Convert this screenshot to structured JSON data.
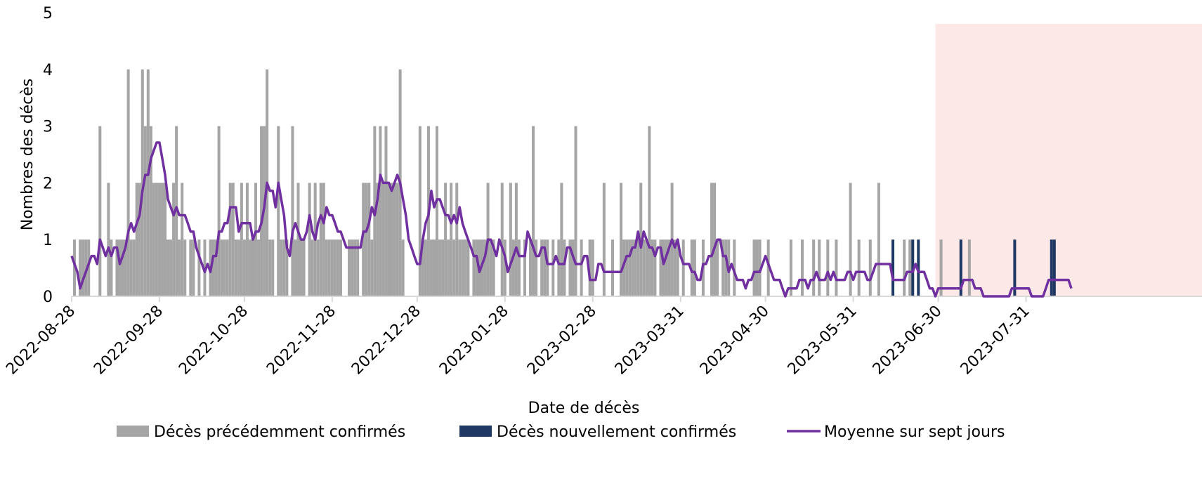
{
  "chart_data": {
    "type": "bar",
    "y_label": "Nombres des décès",
    "x_label": "Date de décès",
    "ylim": [
      0,
      5
    ],
    "yticks": [
      0,
      1,
      2,
      3,
      4,
      5
    ],
    "legend": "bottom",
    "shaded_region": {
      "from": 305,
      "color": "#fde8e8"
    },
    "categories": [
      "2022-08-28",
      null,
      null,
      null,
      null,
      null,
      null,
      null,
      null,
      null,
      null,
      null,
      null,
      null,
      null,
      null,
      null,
      null,
      null,
      null,
      null,
      null,
      null,
      null,
      null,
      null,
      null,
      null,
      null,
      null,
      null,
      "2022-09-28",
      null,
      null,
      null,
      null,
      null,
      null,
      null,
      null,
      null,
      null,
      null,
      null,
      null,
      null,
      null,
      null,
      null,
      null,
      null,
      null,
      null,
      null,
      null,
      null,
      null,
      null,
      null,
      null,
      null,
      "2022-10-28",
      null,
      null,
      null,
      null,
      null,
      null,
      null,
      null,
      null,
      null,
      null,
      null,
      null,
      null,
      null,
      null,
      null,
      null,
      null,
      null,
      null,
      null,
      null,
      null,
      null,
      null,
      null,
      null,
      null,
      null,
      "2022-11-28",
      null,
      null,
      null,
      null,
      null,
      null,
      null,
      null,
      null,
      null,
      null,
      null,
      null,
      null,
      null,
      null,
      null,
      null,
      null,
      null,
      null,
      null,
      null,
      null,
      null,
      null,
      null,
      null,
      null,
      "2022-12-28",
      null,
      null,
      null,
      null,
      null,
      null,
      null,
      null,
      null,
      null,
      null,
      null,
      null,
      null,
      null,
      null,
      null,
      null,
      null,
      null,
      null,
      null,
      null,
      null,
      null,
      null,
      null,
      null,
      null,
      null,
      "2023-01-28",
      null,
      null,
      null,
      null,
      null,
      null,
      null,
      null,
      null,
      null,
      null,
      null,
      null,
      null,
      null,
      null,
      null,
      null,
      null,
      null,
      null,
      null,
      null,
      null,
      null,
      null,
      null,
      null,
      null,
      null,
      "2023-02-28",
      null,
      null,
      null,
      null,
      null,
      null,
      null,
      null,
      null,
      null,
      null,
      null,
      null,
      null,
      null,
      null,
      null,
      null,
      null,
      null,
      null,
      null,
      null,
      null,
      null,
      null,
      null,
      null,
      null,
      null,
      "2023-03-31",
      null,
      null,
      null,
      null,
      null,
      null,
      null,
      null,
      null,
      null,
      null,
      null,
      null,
      null,
      null,
      null,
      null,
      null,
      null,
      null,
      null,
      null,
      null,
      null,
      null,
      null,
      null,
      null,
      null,
      "2023-04-30",
      null,
      null,
      null,
      null,
      null,
      null,
      null,
      null,
      null,
      null,
      null,
      null,
      null,
      null,
      null,
      null,
      null,
      null,
      null,
      null,
      null,
      null,
      null,
      null,
      null,
      null,
      null,
      null,
      null,
      null,
      "2023-05-31",
      null,
      null,
      null,
      null,
      null,
      null,
      null,
      null,
      null,
      null,
      null,
      null,
      null,
      null,
      null,
      null,
      null,
      null,
      null,
      null,
      null,
      null,
      null,
      null,
      null,
      null,
      null,
      null,
      null,
      "2023-06-30",
      null,
      null,
      null,
      null,
      null,
      null,
      null,
      null,
      null,
      null,
      null,
      null,
      null,
      null,
      null,
      null,
      null,
      null,
      null,
      null,
      null,
      null,
      null,
      null,
      null,
      null,
      null,
      null,
      null,
      null,
      "2023-07-31",
      null,
      null,
      null,
      null,
      null,
      null,
      null,
      null,
      null,
      null,
      null,
      null,
      null,
      null,
      null,
      null
    ],
    "series": [
      {
        "name": "Décès précédemment confirmés",
        "color": "#a5a5a5",
        "kind": "bar",
        "values": [
          0,
          1,
          0,
          1,
          1,
          1,
          1,
          0,
          0,
          0,
          3,
          0,
          0,
          2,
          1,
          0,
          1,
          1,
          1,
          1,
          4,
          1,
          1,
          2,
          2,
          4,
          3,
          4,
          3,
          2,
          2,
          2,
          2,
          2,
          1,
          1,
          2,
          3,
          1,
          2,
          1,
          0,
          1,
          1,
          0,
          1,
          0,
          1,
          0,
          1,
          1,
          1,
          3,
          1,
          1,
          1,
          2,
          2,
          1,
          1,
          2,
          1,
          2,
          1,
          1,
          2,
          1,
          3,
          3,
          4,
          1,
          1,
          0,
          3,
          1,
          1,
          1,
          0,
          3,
          1,
          2,
          1,
          1,
          0,
          2,
          1,
          2,
          1,
          2,
          2,
          1,
          1,
          1,
          1,
          1,
          1,
          0,
          0,
          1,
          1,
          1,
          1,
          0,
          2,
          2,
          2,
          1,
          3,
          2,
          3,
          2,
          3,
          2,
          2,
          2,
          2,
          4,
          1,
          0,
          0,
          0,
          0,
          0,
          3,
          1,
          1,
          3,
          1,
          1,
          3,
          1,
          1,
          2,
          1,
          2,
          1,
          2,
          1,
          1,
          1,
          1,
          0,
          1,
          1,
          1,
          1,
          1,
          2,
          1,
          1,
          0,
          0,
          2,
          1,
          0,
          2,
          1,
          2,
          1,
          0,
          1,
          0,
          1,
          3,
          1,
          0,
          1,
          1,
          1,
          0,
          1,
          0,
          1,
          2,
          1,
          0,
          1,
          1,
          3,
          0,
          1,
          0,
          0,
          1,
          1,
          0,
          0,
          0,
          2,
          0,
          0,
          1,
          0,
          0,
          2,
          1,
          1,
          1,
          1,
          1,
          1,
          2,
          1,
          1,
          3,
          1,
          1,
          0,
          1,
          1,
          1,
          1,
          2,
          1,
          1,
          0,
          1,
          0,
          0,
          1,
          1,
          0,
          0,
          1,
          0,
          0,
          2,
          2,
          1,
          0,
          1,
          1,
          1,
          0,
          1,
          0,
          0,
          0,
          0,
          0,
          0,
          1,
          1,
          1,
          0,
          0,
          1,
          0,
          0,
          0,
          0,
          0,
          0,
          0,
          1,
          0,
          0,
          0,
          1,
          0,
          0,
          0,
          1,
          0,
          1,
          0,
          0,
          1,
          0,
          0,
          1,
          0,
          0,
          0,
          0,
          2,
          0,
          0,
          1,
          0,
          0,
          0,
          1,
          0,
          0,
          2,
          0,
          0,
          0,
          0,
          0,
          0,
          0,
          0,
          1,
          0,
          1,
          0,
          0,
          0,
          0,
          0,
          0,
          0,
          0,
          0,
          0,
          1,
          0,
          0,
          0,
          0,
          0,
          0,
          0,
          0,
          0,
          1,
          0,
          0,
          0,
          0,
          0,
          0,
          0,
          0,
          0,
          0,
          0,
          0,
          0,
          0,
          0,
          0,
          0,
          0,
          0,
          0,
          0,
          0,
          0,
          0,
          0,
          0,
          0,
          0,
          0,
          0,
          0,
          0,
          0,
          0,
          0,
          0
        ]
      },
      {
        "name": "Décès nouvellement confirmés",
        "color": "#1f3864",
        "kind": "bar",
        "values": [
          0,
          0,
          0,
          0,
          0,
          0,
          0,
          0,
          0,
          0,
          0,
          0,
          0,
          0,
          0,
          0,
          0,
          0,
          0,
          0,
          0,
          0,
          0,
          0,
          0,
          0,
          0,
          0,
          0,
          0,
          0,
          0,
          0,
          0,
          0,
          0,
          0,
          0,
          0,
          0,
          0,
          0,
          0,
          0,
          0,
          0,
          0,
          0,
          0,
          0,
          0,
          0,
          0,
          0,
          0,
          0,
          0,
          0,
          0,
          0,
          0,
          0,
          0,
          0,
          0,
          0,
          0,
          0,
          0,
          0,
          0,
          0,
          0,
          0,
          0,
          0,
          0,
          0,
          0,
          0,
          0,
          0,
          0,
          0,
          0,
          0,
          0,
          0,
          0,
          0,
          0,
          0,
          0,
          0,
          0,
          0,
          0,
          0,
          0,
          0,
          0,
          0,
          0,
          0,
          0,
          0,
          0,
          0,
          0,
          0,
          0,
          0,
          0,
          0,
          0,
          0,
          0,
          0,
          0,
          0,
          0,
          0,
          0,
          0,
          0,
          0,
          0,
          0,
          0,
          0,
          0,
          0,
          0,
          0,
          0,
          0,
          0,
          0,
          0,
          0,
          0,
          0,
          0,
          0,
          0,
          0,
          0,
          0,
          0,
          0,
          0,
          0,
          0,
          0,
          0,
          0,
          0,
          0,
          0,
          0,
          0,
          0,
          0,
          0,
          0,
          0,
          0,
          0,
          0,
          0,
          0,
          0,
          0,
          0,
          0,
          0,
          0,
          0,
          0,
          0,
          0,
          0,
          0,
          0,
          0,
          0,
          0,
          0,
          0,
          0,
          0,
          0,
          0,
          0,
          0,
          0,
          0,
          0,
          0,
          0,
          0,
          0,
          0,
          0,
          0,
          0,
          0,
          0,
          0,
          0,
          0,
          0,
          0,
          0,
          0,
          0,
          0,
          0,
          0,
          0,
          0,
          0,
          0,
          0,
          0,
          0,
          0,
          0,
          0,
          0,
          0,
          0,
          0,
          0,
          0,
          0,
          0,
          0,
          0,
          0,
          0,
          0,
          0,
          0,
          0,
          0,
          0,
          0,
          0,
          0,
          0,
          0,
          0,
          0,
          0,
          0,
          0,
          0,
          0,
          0,
          0,
          0,
          0,
          0,
          0,
          0,
          0,
          0,
          0,
          0,
          0,
          0,
          0,
          0,
          0,
          0,
          0,
          0,
          0,
          0,
          0,
          0,
          0,
          0,
          0,
          0,
          0,
          0,
          0,
          0,
          1,
          0,
          0,
          0,
          0,
          0,
          0,
          1,
          0,
          1,
          0,
          0,
          0,
          0,
          0,
          0,
          0,
          0,
          0,
          0,
          0,
          0,
          0,
          0,
          1,
          0,
          0,
          0,
          0,
          0,
          0,
          0,
          0,
          0,
          0,
          0,
          0,
          0,
          0,
          0,
          0,
          0,
          0,
          1,
          0,
          0,
          0,
          0,
          0,
          0,
          0,
          0,
          0,
          0,
          0,
          0,
          1,
          1,
          0,
          0,
          0,
          0,
          0,
          0
        ]
      },
      {
        "name": "Moyenne sur sept jours",
        "color": "#7030a0",
        "kind": "line",
        "values": [
          0.71,
          0.57,
          0.43,
          0.14,
          0.29,
          0.43,
          0.57,
          0.71,
          0.71,
          0.57,
          1,
          0.86,
          0.71,
          0.86,
          0.71,
          0.86,
          0.86,
          0.57,
          0.71,
          0.86,
          1.14,
          1.29,
          1.14,
          1.29,
          1.43,
          1.86,
          2.14,
          2.14,
          2.43,
          2.57,
          2.71,
          2.71,
          2.43,
          2.14,
          1.71,
          1.57,
          1.43,
          1.57,
          1.43,
          1.43,
          1.43,
          1.29,
          1.14,
          1.14,
          0.86,
          0.71,
          0.57,
          0.43,
          0.57,
          0.43,
          0.71,
          0.71,
          1.14,
          1.14,
          1.29,
          1.29,
          1.57,
          1.57,
          1.57,
          1.14,
          1.29,
          1.29,
          1.29,
          1.29,
          1,
          1.14,
          1.14,
          1.29,
          1.57,
          2,
          1.86,
          1.86,
          1.57,
          2,
          1.71,
          1.43,
          0.86,
          0.71,
          1.14,
          1.29,
          1.14,
          1,
          1,
          1.14,
          1.43,
          1.14,
          1,
          1.29,
          1.43,
          1.29,
          1.57,
          1.43,
          1.43,
          1.29,
          1.14,
          1.14,
          1,
          0.86,
          0.86,
          0.86,
          0.86,
          0.86,
          0.86,
          1.14,
          1.14,
          1.29,
          1.57,
          1.43,
          1.71,
          2.14,
          2,
          2,
          2,
          1.86,
          2,
          2.14,
          2,
          1.71,
          1.43,
          1,
          0.86,
          0.71,
          0.57,
          0.57,
          1,
          1.29,
          1.43,
          1.86,
          1.57,
          1.71,
          1.71,
          1.57,
          1.43,
          1.43,
          1.29,
          1.43,
          1.29,
          1.57,
          1.29,
          1.14,
          1,
          0.86,
          0.71,
          0.71,
          0.43,
          0.57,
          0.71,
          1,
          1,
          0.86,
          0.71,
          1,
          0.86,
          0.71,
          0.43,
          0.57,
          0.71,
          0.86,
          0.71,
          0.71,
          0.71,
          1.14,
          1,
          0.86,
          0.71,
          0.71,
          0.86,
          0.86,
          0.57,
          0.57,
          0.57,
          0.71,
          0.57,
          0.57,
          0.57,
          0.86,
          0.86,
          0.71,
          0.57,
          0.57,
          0.57,
          0.71,
          0.71,
          0.29,
          0.29,
          0.29,
          0.57,
          0.57,
          0.43,
          0.43,
          0.43,
          0.43,
          0.43,
          0.43,
          0.43,
          0.57,
          0.71,
          0.71,
          0.86,
          0.86,
          1.14,
          0.86,
          1.14,
          1,
          0.86,
          0.86,
          0.71,
          0.86,
          0.86,
          0.57,
          0.71,
          0.86,
          1,
          0.86,
          1,
          0.71,
          0.57,
          0.57,
          0.57,
          0.43,
          0.43,
          0.29,
          0.29,
          0.57,
          0.57,
          0.71,
          0.71,
          0.86,
          1,
          1,
          0.71,
          0.71,
          0.43,
          0.57,
          0.43,
          0.29,
          0.29,
          0.29,
          0.14,
          0.29,
          0.29,
          0.43,
          0.43,
          0.43,
          0.57,
          0.71,
          0.57,
          0.43,
          0.29,
          0.29,
          0.29,
          0.14,
          0,
          0.14,
          0.14,
          0.14,
          0.14,
          0.29,
          0.29,
          0.29,
          0.14,
          0.29,
          0.29,
          0.43,
          0.29,
          0.29,
          0.29,
          0.43,
          0.29,
          0.43,
          0.29,
          0.29,
          0.29,
          0.29,
          0.43,
          0.43,
          0.29,
          0.43,
          0.43,
          0.43,
          0.43,
          0.29,
          0.29,
          0.43,
          0.57,
          0.57,
          0.57,
          0.57,
          0.57,
          0.57,
          0.29,
          0.29,
          0.29,
          0.29,
          0.29,
          0.43,
          0.43,
          0.43,
          0.57,
          0.43,
          0.43,
          0.43,
          0.29,
          0.14,
          0.14,
          0,
          0.14,
          0.14,
          0.14,
          0.14,
          0.14,
          0.14,
          0.14,
          0.14,
          0.14,
          0.29,
          0.29,
          0.29,
          0.29,
          0.14,
          0.14,
          0.14,
          0,
          0,
          0,
          0,
          0,
          0,
          0,
          0,
          0,
          0,
          0.14,
          0.14,
          0.14,
          0.14,
          0.14,
          0.14,
          0.14,
          0,
          0,
          0,
          0,
          0,
          0.14,
          0.29,
          0.29,
          0.29,
          0.29,
          0.29,
          0.29,
          0.29,
          0.29,
          0.14
        ]
      }
    ]
  }
}
